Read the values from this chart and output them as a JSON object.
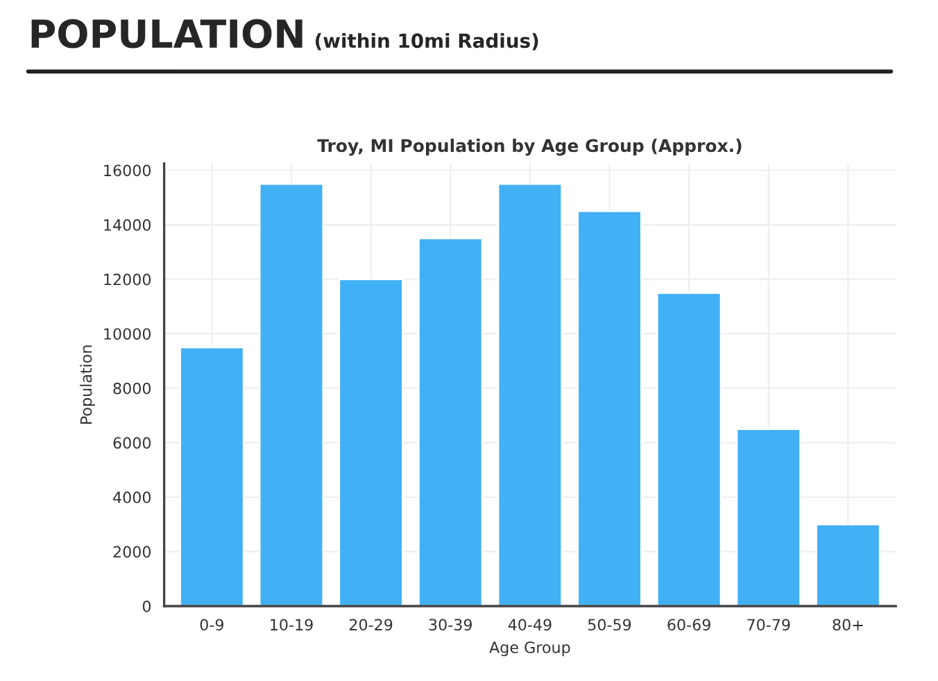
{
  "chart_data": {
    "type": "bar",
    "title": "POPULATION",
    "subtitle": "(within 10mi Radius)",
    "annotations": [
      "Troy, MI Population by Age Group (Approx.)"
    ],
    "xlabel": "Age Group",
    "ylabel": "Population",
    "categories": [
      "0-9",
      "10-19",
      "20-29",
      "30-39",
      "40-49",
      "50-59",
      "60-69",
      "70-79",
      "80+"
    ],
    "values": [
      9500,
      15500,
      12000,
      13500,
      15500,
      14500,
      11500,
      6500,
      3000
    ],
    "color": "#42b0f5",
    "ylim": [
      0,
      16250
    ],
    "yticks": [
      0,
      2000,
      4000,
      6000,
      8000,
      10000,
      12000,
      14000,
      16000
    ],
    "grid": true
  }
}
